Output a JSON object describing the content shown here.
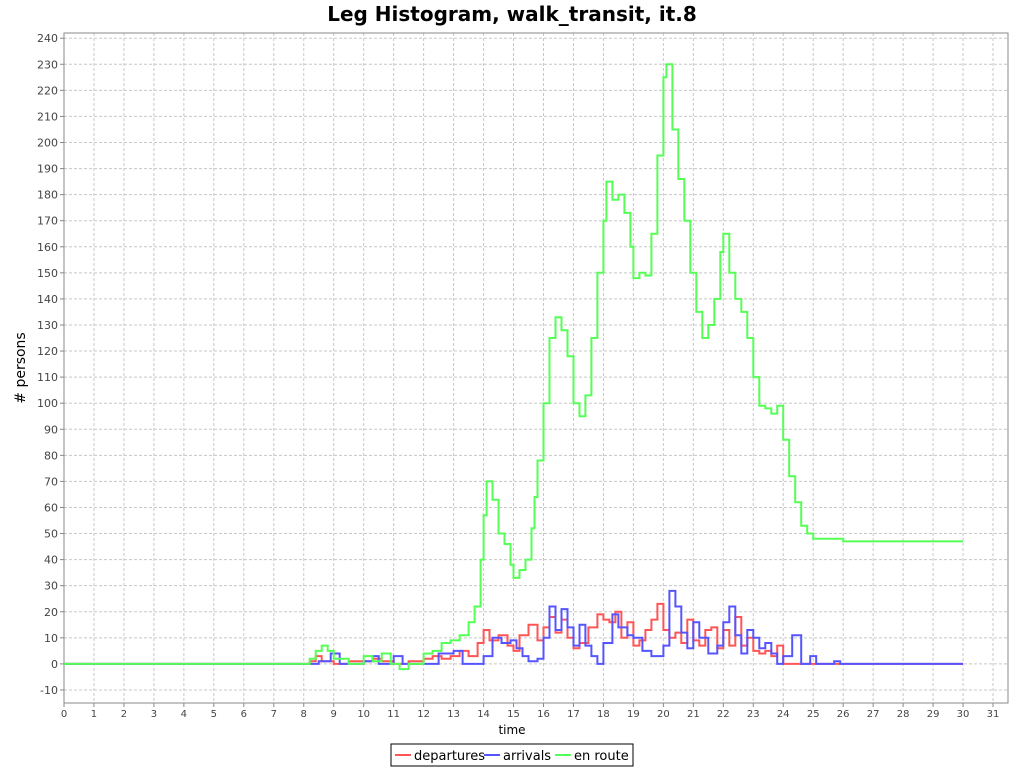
{
  "chart_data": {
    "type": "line",
    "title": "Leg Histogram, walk_transit, it.8",
    "xlabel": "time",
    "ylabel": "# persons",
    "xlim": [
      0,
      31.5
    ],
    "ylim": [
      -15,
      242
    ],
    "x_ticks": [
      0,
      1,
      2,
      3,
      4,
      5,
      6,
      7,
      8,
      9,
      10,
      11,
      12,
      13,
      14,
      15,
      16,
      17,
      18,
      19,
      20,
      21,
      22,
      23,
      24,
      25,
      26,
      27,
      28,
      29,
      30,
      31
    ],
    "y_ticks": [
      -10,
      0,
      10,
      20,
      30,
      40,
      50,
      60,
      70,
      80,
      90,
      100,
      110,
      120,
      130,
      140,
      150,
      160,
      170,
      180,
      190,
      200,
      210,
      220,
      230,
      240
    ],
    "grid": true,
    "legend_position": "bottom",
    "series": [
      {
        "name": "departures",
        "color": "#ff5555",
        "points": [
          [
            0,
            0
          ],
          [
            8,
            0
          ],
          [
            8.2,
            1
          ],
          [
            8.4,
            3
          ],
          [
            8.6,
            1
          ],
          [
            9,
            0
          ],
          [
            9.5,
            1
          ],
          [
            10,
            1
          ],
          [
            10.3,
            2
          ],
          [
            10.6,
            1
          ],
          [
            11,
            0
          ],
          [
            11.5,
            1
          ],
          [
            12,
            2
          ],
          [
            12.3,
            3
          ],
          [
            12.6,
            2
          ],
          [
            12.9,
            3
          ],
          [
            13.2,
            5
          ],
          [
            13.5,
            3
          ],
          [
            13.8,
            8
          ],
          [
            14,
            13
          ],
          [
            14.2,
            9
          ],
          [
            14.5,
            11
          ],
          [
            14.8,
            7
          ],
          [
            15,
            5
          ],
          [
            15.2,
            11
          ],
          [
            15.5,
            15
          ],
          [
            15.8,
            9
          ],
          [
            16,
            14
          ],
          [
            16.2,
            18
          ],
          [
            16.4,
            12
          ],
          [
            16.6,
            17
          ],
          [
            16.8,
            10
          ],
          [
            17,
            6
          ],
          [
            17.2,
            8
          ],
          [
            17.5,
            14
          ],
          [
            17.8,
            19
          ],
          [
            18,
            17
          ],
          [
            18.2,
            16
          ],
          [
            18.4,
            20
          ],
          [
            18.6,
            10
          ],
          [
            18.8,
            16
          ],
          [
            19,
            7
          ],
          [
            19.2,
            9
          ],
          [
            19.4,
            13
          ],
          [
            19.6,
            17
          ],
          [
            19.8,
            23
          ],
          [
            20,
            13
          ],
          [
            20.2,
            10
          ],
          [
            20.4,
            12
          ],
          [
            20.6,
            8
          ],
          [
            20.8,
            17
          ],
          [
            21,
            9
          ],
          [
            21.2,
            7
          ],
          [
            21.4,
            13
          ],
          [
            21.6,
            14
          ],
          [
            21.8,
            6
          ],
          [
            22,
            13
          ],
          [
            22.2,
            7
          ],
          [
            22.4,
            18
          ],
          [
            22.6,
            7
          ],
          [
            22.8,
            10
          ],
          [
            23,
            5
          ],
          [
            23.2,
            4
          ],
          [
            23.4,
            5
          ],
          [
            23.6,
            3
          ],
          [
            23.8,
            7
          ],
          [
            24,
            0
          ],
          [
            25,
            0
          ],
          [
            30,
            0
          ]
        ]
      },
      {
        "name": "arrivals",
        "color": "#5555ff",
        "points": [
          [
            0,
            0
          ],
          [
            8,
            0
          ],
          [
            8.5,
            1
          ],
          [
            8.9,
            4
          ],
          [
            9.2,
            0
          ],
          [
            10,
            1
          ],
          [
            10.3,
            3
          ],
          [
            10.5,
            0
          ],
          [
            11,
            3
          ],
          [
            11.3,
            0
          ],
          [
            12,
            0
          ],
          [
            12.5,
            4
          ],
          [
            13,
            5
          ],
          [
            13.3,
            0
          ],
          [
            14,
            3
          ],
          [
            14.3,
            10
          ],
          [
            14.6,
            8
          ],
          [
            14.9,
            9
          ],
          [
            15.1,
            6
          ],
          [
            15.3,
            3
          ],
          [
            15.5,
            1
          ],
          [
            15.8,
            2
          ],
          [
            16,
            10
          ],
          [
            16.2,
            22
          ],
          [
            16.4,
            13
          ],
          [
            16.6,
            21
          ],
          [
            16.8,
            14
          ],
          [
            17,
            7
          ],
          [
            17.2,
            15
          ],
          [
            17.4,
            7
          ],
          [
            17.6,
            3
          ],
          [
            17.8,
            0
          ],
          [
            18,
            8
          ],
          [
            18.3,
            19
          ],
          [
            18.5,
            14
          ],
          [
            18.8,
            11
          ],
          [
            19,
            10
          ],
          [
            19.3,
            5
          ],
          [
            19.6,
            3
          ],
          [
            20,
            7
          ],
          [
            20.2,
            28
          ],
          [
            20.4,
            22
          ],
          [
            20.6,
            12
          ],
          [
            20.8,
            6
          ],
          [
            21,
            16
          ],
          [
            21.2,
            10
          ],
          [
            21.5,
            4
          ],
          [
            21.8,
            7
          ],
          [
            22,
            16
          ],
          [
            22.2,
            22
          ],
          [
            22.4,
            11
          ],
          [
            22.6,
            4
          ],
          [
            22.8,
            13
          ],
          [
            23,
            10
          ],
          [
            23.2,
            6
          ],
          [
            23.4,
            8
          ],
          [
            23.6,
            4
          ],
          [
            23.8,
            0
          ],
          [
            24,
            3
          ],
          [
            24.3,
            11
          ],
          [
            24.6,
            0
          ],
          [
            24.9,
            3
          ],
          [
            25.1,
            0
          ],
          [
            25.7,
            1
          ],
          [
            25.9,
            0
          ],
          [
            30,
            0
          ]
        ]
      },
      {
        "name": "en route",
        "color": "#55ff55",
        "points": [
          [
            0,
            0
          ],
          [
            8,
            0
          ],
          [
            8.2,
            2
          ],
          [
            8.4,
            5
          ],
          [
            8.6,
            7
          ],
          [
            8.8,
            5
          ],
          [
            9,
            2
          ],
          [
            9.5,
            0
          ],
          [
            10,
            3
          ],
          [
            10.3,
            1
          ],
          [
            10.6,
            4
          ],
          [
            10.9,
            0
          ],
          [
            11.2,
            -2
          ],
          [
            11.5,
            0
          ],
          [
            12,
            4
          ],
          [
            12.3,
            5
          ],
          [
            12.6,
            8
          ],
          [
            12.9,
            9
          ],
          [
            13.2,
            11
          ],
          [
            13.5,
            16
          ],
          [
            13.7,
            22
          ],
          [
            13.9,
            40
          ],
          [
            14,
            57
          ],
          [
            14.1,
            70
          ],
          [
            14.3,
            63
          ],
          [
            14.5,
            50
          ],
          [
            14.7,
            46
          ],
          [
            14.9,
            38
          ],
          [
            15,
            33
          ],
          [
            15.2,
            36
          ],
          [
            15.4,
            40
          ],
          [
            15.6,
            52
          ],
          [
            15.7,
            64
          ],
          [
            15.8,
            78
          ],
          [
            16,
            100
          ],
          [
            16.2,
            125
          ],
          [
            16.4,
            133
          ],
          [
            16.6,
            128
          ],
          [
            16.8,
            118
          ],
          [
            17,
            100
          ],
          [
            17.2,
            95
          ],
          [
            17.4,
            103
          ],
          [
            17.6,
            125
          ],
          [
            17.8,
            150
          ],
          [
            18,
            170
          ],
          [
            18.1,
            185
          ],
          [
            18.3,
            178
          ],
          [
            18.5,
            180
          ],
          [
            18.7,
            173
          ],
          [
            18.9,
            160
          ],
          [
            19,
            148
          ],
          [
            19.2,
            150
          ],
          [
            19.4,
            149
          ],
          [
            19.6,
            165
          ],
          [
            19.8,
            195
          ],
          [
            20,
            225
          ],
          [
            20.1,
            230
          ],
          [
            20.3,
            205
          ],
          [
            20.5,
            186
          ],
          [
            20.7,
            170
          ],
          [
            20.9,
            150
          ],
          [
            21.1,
            135
          ],
          [
            21.3,
            125
          ],
          [
            21.5,
            130
          ],
          [
            21.7,
            140
          ],
          [
            21.9,
            158
          ],
          [
            22,
            165
          ],
          [
            22.2,
            150
          ],
          [
            22.4,
            140
          ],
          [
            22.6,
            135
          ],
          [
            22.8,
            125
          ],
          [
            23,
            110
          ],
          [
            23.2,
            99
          ],
          [
            23.4,
            98
          ],
          [
            23.6,
            96
          ],
          [
            23.8,
            99
          ],
          [
            24,
            86
          ],
          [
            24.2,
            72
          ],
          [
            24.4,
            62
          ],
          [
            24.6,
            53
          ],
          [
            24.8,
            50
          ],
          [
            25,
            48
          ],
          [
            25.5,
            48
          ],
          [
            26,
            47
          ],
          [
            30,
            47
          ]
        ]
      }
    ]
  }
}
